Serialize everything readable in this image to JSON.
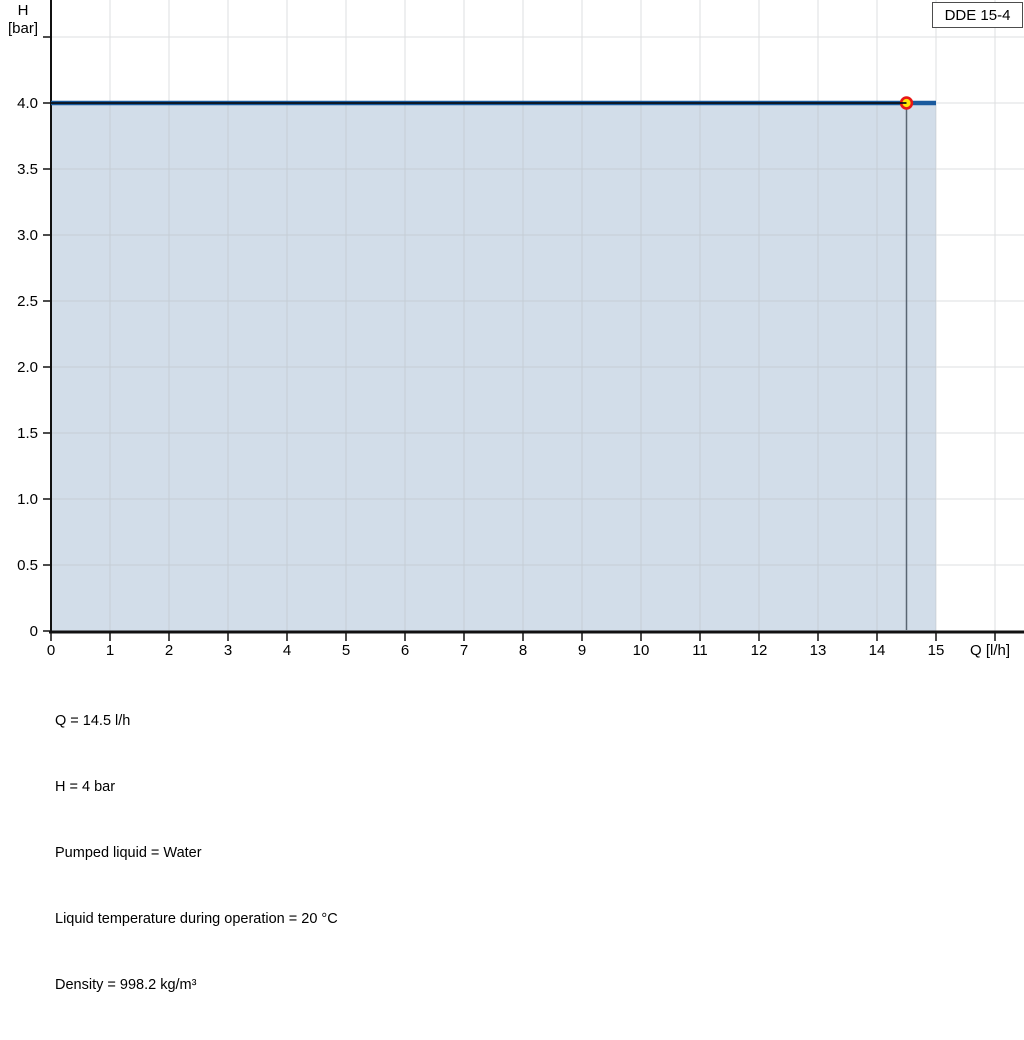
{
  "page": {
    "background": "#ffffff"
  },
  "chart_data": {
    "type": "line",
    "title": "DDE 15-4",
    "x_axis": {
      "label": "Q [l/h]",
      "ticks": [
        {
          "v": 0,
          "label": "0"
        },
        {
          "v": 1,
          "label": "1"
        },
        {
          "v": 2,
          "label": "2"
        },
        {
          "v": 3,
          "label": "3"
        },
        {
          "v": 4,
          "label": "4"
        },
        {
          "v": 5,
          "label": "5"
        },
        {
          "v": 6,
          "label": "6"
        },
        {
          "v": 7,
          "label": "7"
        },
        {
          "v": 8,
          "label": "8"
        },
        {
          "v": 9,
          "label": "9"
        },
        {
          "v": 10,
          "label": "10"
        },
        {
          "v": 11,
          "label": "11"
        },
        {
          "v": 12,
          "label": "12"
        },
        {
          "v": 13,
          "label": "13"
        },
        {
          "v": 14,
          "label": "14"
        },
        {
          "v": 15,
          "label": "15"
        },
        {
          "v": 16,
          "label": ""
        }
      ]
    },
    "y_axis": {
      "label_line1": "H",
      "label_line2": "[bar]",
      "ticks": [
        {
          "v": 0,
          "label": "0"
        },
        {
          "v": 0.5,
          "label": "0.5"
        },
        {
          "v": 1,
          "label": "1.0"
        },
        {
          "v": 1.5,
          "label": "1.5"
        },
        {
          "v": 2,
          "label": "2.0"
        },
        {
          "v": 2.5,
          "label": "2.5"
        },
        {
          "v": 3,
          "label": "3.0"
        },
        {
          "v": 3.5,
          "label": "3.5"
        },
        {
          "v": 4,
          "label": "4.0"
        },
        {
          "v": 4.5,
          "label": ""
        }
      ]
    },
    "xlim": [
      0,
      16.5
    ],
    "ylim": [
      0,
      4.78
    ],
    "grid": {
      "x_step": 1,
      "x_max": 16,
      "y_step": 0.5,
      "y_max": 4.5,
      "grid_on": true
    },
    "series": [
      {
        "name": "pump-curve",
        "points": [
          [
            0,
            4
          ],
          [
            15,
            4
          ]
        ]
      }
    ],
    "area_fill": {
      "x_from": 0,
      "x_to": 15,
      "h_top": 4,
      "h_bottom": 0
    },
    "operating_point": {
      "q": 14.5,
      "h": 4
    },
    "colors": {
      "area": "#d2dde9",
      "grid_light": "#dedfe1",
      "grid_dark": "#c5cdd5",
      "curve_blue": "#1a5a9e",
      "curve_core": "#0d1014",
      "drop_line": "#5a6673",
      "marker_fill": "#ffe606",
      "marker_ring": "#e81717",
      "axis": "#111111"
    },
    "legend_position": "none"
  },
  "info": {
    "lines": [
      "Q = 14.5 l/h",
      "H = 4 bar",
      "Pumped liquid = Water",
      "Liquid temperature during operation = 20 °C",
      "Density = 998.2 kg/m³"
    ]
  }
}
